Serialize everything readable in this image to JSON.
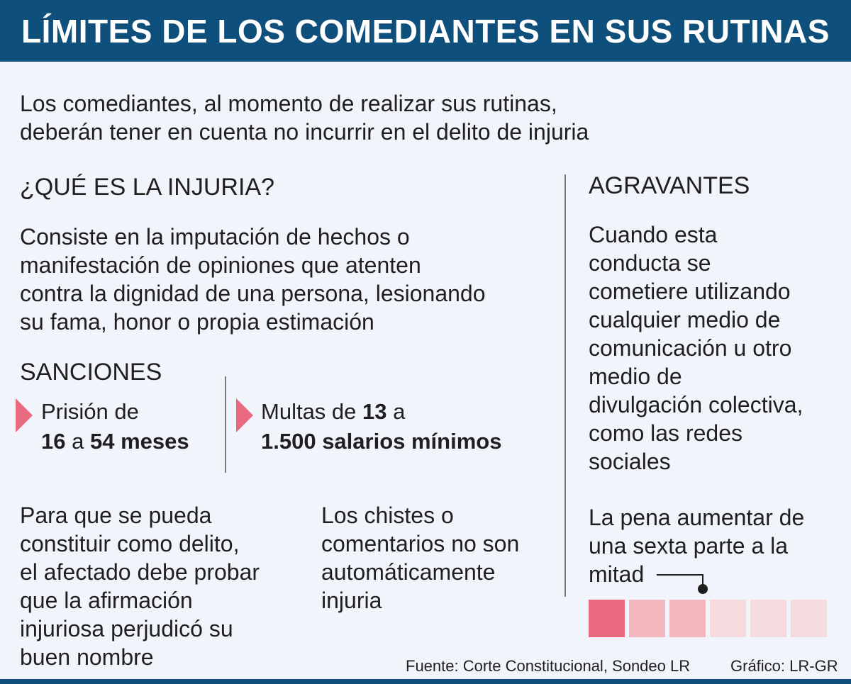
{
  "header": {
    "title": "LÍMITES DE LOS COMEDIANTES EN SUS RUTINAS"
  },
  "intro": {
    "line1": "Los comediantes, al momento de realizar sus rutinas,",
    "line2": "deberán tener en cuenta no incurrir en el delito de injuria"
  },
  "injuria": {
    "heading": "¿QUÉ ES LA INJURIA?",
    "lines": [
      "Consiste en la imputación de hechos o",
      "manifestación de opiniones que atenten",
      "contra la dignidad de una persona, lesionando",
      "su fama, honor o propia estimación"
    ]
  },
  "sanciones": {
    "heading": "SANCIONES",
    "prison": {
      "prefix": "Prisión de",
      "from": "16",
      "connector": "a",
      "to": "54 meses"
    },
    "fine": {
      "prefix": "Multas de",
      "from": "13",
      "connector": "a",
      "to": "1.500 salarios mínimos"
    }
  },
  "notes": {
    "left": [
      "Para que se pueda",
      "constituir como delito,",
      "el afectado debe probar",
      "que la afirmación",
      "injuriosa perjudicó su",
      "buen nombre"
    ],
    "middle": [
      "Los chistes o",
      "comentarios no son",
      "automáticamente",
      "injuria"
    ]
  },
  "agravantes": {
    "heading": "AGRAVANTES",
    "lines": [
      "Cuando esta",
      "conducta se",
      "cometiere utilizando",
      "cualquier medio de",
      "comunicación u otro",
      "medio de",
      "divulgación colectiva,",
      "como las redes",
      "sociales"
    ],
    "penalty_lines": [
      "La pena aumentar de",
      "una sexta parte a la",
      "mitad"
    ],
    "scale": {
      "total_parts": 6,
      "colors": [
        "#e96a80",
        "#f2b8bd",
        "#f2b8bd",
        "#f5dade",
        "#f5dade",
        "#f5dade"
      ]
    }
  },
  "footer": {
    "source": "Fuente: Corte Constitucional, Sondeo LR",
    "credit": "Gráfico: LR-GR"
  },
  "colors": {
    "header_bg": "#0f4f7c",
    "accent": "#e96a80",
    "background": "#f2f4fb"
  }
}
